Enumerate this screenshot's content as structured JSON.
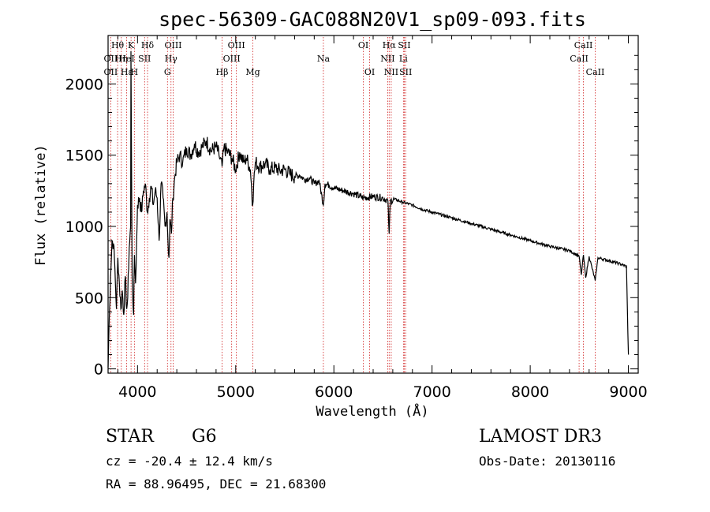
{
  "chart_data": {
    "type": "line",
    "title": "spec-56309-GAC088N20V1_sp09-093.fits",
    "xlabel": "Wavelength (Å)",
    "ylabel": "Flux (relative)",
    "xlim": [
      3700,
      9100
    ],
    "ylim": [
      -30,
      2340
    ],
    "xticks": [
      4000,
      5000,
      6000,
      7000,
      8000,
      9000
    ],
    "yticks": [
      0,
      500,
      1000,
      1500,
      2000
    ],
    "grid": false,
    "series": [
      {
        "name": "spectrum",
        "x": [
          3700,
          3710,
          3725,
          3740,
          3755,
          3770,
          3785,
          3800,
          3815,
          3830,
          3845,
          3860,
          3875,
          3890,
          3900,
          3915,
          3930,
          3933,
          3945,
          3960,
          3968,
          3980,
          4000,
          4020,
          4040,
          4060,
          4080,
          4100,
          4120,
          4140,
          4160,
          4180,
          4200,
          4220,
          4240,
          4260,
          4280,
          4300,
          4310,
          4320,
          4330,
          4345,
          4360,
          4380,
          4400,
          4430,
          4460,
          4500,
          4540,
          4580,
          4620,
          4660,
          4700,
          4750,
          4800,
          4830,
          4861,
          4880,
          4920,
          4960,
          5000,
          5040,
          5080,
          5110,
          5150,
          5173,
          5183,
          5200,
          5250,
          5300,
          5350,
          5400,
          5450,
          5500,
          5550,
          5600,
          5650,
          5700,
          5750,
          5800,
          5850,
          5893,
          5910,
          5950,
          6000,
          6100,
          6200,
          6300,
          6400,
          6500,
          6550,
          6563,
          6575,
          6620,
          6700,
          6800,
          6900,
          7000,
          7200,
          7400,
          7600,
          7800,
          8000,
          8200,
          8400,
          8498,
          8520,
          8542,
          8565,
          8600,
          8662,
          8690,
          8800,
          8900,
          8980,
          9000
        ],
        "values": [
          10,
          300,
          650,
          900,
          880,
          700,
          420,
          780,
          600,
          420,
          550,
          380,
          650,
          420,
          500,
          850,
          1000,
          2230,
          650,
          380,
          800,
          600,
          1150,
          1200,
          1100,
          1250,
          1300,
          1100,
          1200,
          1280,
          1150,
          1250,
          1200,
          900,
          1300,
          1200,
          1000,
          1100,
          900,
          780,
          1050,
          950,
          1200,
          1350,
          1450,
          1500,
          1450,
          1550,
          1500,
          1580,
          1520,
          1560,
          1600,
          1530,
          1560,
          1500,
          1420,
          1550,
          1520,
          1480,
          1400,
          1520,
          1450,
          1480,
          1400,
          1150,
          1300,
          1450,
          1420,
          1440,
          1400,
          1410,
          1390,
          1400,
          1370,
          1350,
          1360,
          1330,
          1340,
          1300,
          1320,
          1150,
          1300,
          1290,
          1270,
          1250,
          1230,
          1200,
          1210,
          1200,
          1180,
          950,
          1180,
          1190,
          1170,
          1150,
          1120,
          1100,
          1060,
          1020,
          980,
          940,
          900,
          860,
          830,
          790,
          660,
          800,
          640,
          790,
          620,
          780,
          760,
          740,
          720,
          100
        ]
      }
    ],
    "line_markers": [
      {
        "label": "Hθ",
        "wavelength": 3797,
        "row": 1
      },
      {
        "label": "OII",
        "wavelength": 3727,
        "row": 2
      },
      {
        "label": "OII",
        "wavelength": 3727,
        "row": 3
      },
      {
        "label": "Hη",
        "wavelength": 3835,
        "row": 2
      },
      {
        "label": "Hε",
        "wavelength": 3889,
        "row": 3
      },
      {
        "label": "HeI",
        "wavelength": 3889,
        "row": 2
      },
      {
        "label": "K",
        "wavelength": 3934,
        "row": 1
      },
      {
        "label": "H",
        "wavelength": 3968,
        "row": 3
      },
      {
        "label": "SII",
        "wavelength": 4072,
        "row": 2
      },
      {
        "label": "Hδ",
        "wavelength": 4102,
        "row": 1
      },
      {
        "label": "G",
        "wavelength": 4305,
        "row": 3
      },
      {
        "label": "OIII",
        "wavelength": 4363,
        "row": 1
      },
      {
        "label": "Hγ",
        "wavelength": 4341,
        "row": 2
      },
      {
        "label": "Hβ",
        "wavelength": 4861,
        "row": 3
      },
      {
        "label": "OIII",
        "wavelength": 5007,
        "row": 1
      },
      {
        "label": "OIII",
        "wavelength": 4959,
        "row": 2
      },
      {
        "label": "Mg",
        "wavelength": 5175,
        "row": 3
      },
      {
        "label": "Na",
        "wavelength": 5893,
        "row": 2
      },
      {
        "label": "OI",
        "wavelength": 6300,
        "row": 1
      },
      {
        "label": "OI",
        "wavelength": 6364,
        "row": 3
      },
      {
        "label": "Hα",
        "wavelength": 6563,
        "row": 1
      },
      {
        "label": "NII",
        "wavelength": 6548,
        "row": 2
      },
      {
        "label": "NII",
        "wavelength": 6584,
        "row": 3
      },
      {
        "label": "SII",
        "wavelength": 6717,
        "row": 1
      },
      {
        "label": "SII",
        "wavelength": 6731,
        "row": 3
      },
      {
        "label": "Li",
        "wavelength": 6708,
        "row": 2
      },
      {
        "label": "CaII",
        "wavelength": 8542,
        "row": 1
      },
      {
        "label": "CaII",
        "wavelength": 8498,
        "row": 2
      },
      {
        "label": "CaII",
        "wavelength": 8662,
        "row": 3
      }
    ]
  },
  "footer": {
    "class_label": "STAR",
    "subclass": "G6",
    "survey": "LAMOST DR3",
    "cz": "cz = -20.4 ± 12.4 km/s",
    "obs_date": "Obs-Date: 20130116",
    "coords": "RA =  88.96495, DEC =  21.68300"
  },
  "colors": {
    "line_marker": "#d02020",
    "spectrum": "#000000",
    "axis": "#000000"
  }
}
